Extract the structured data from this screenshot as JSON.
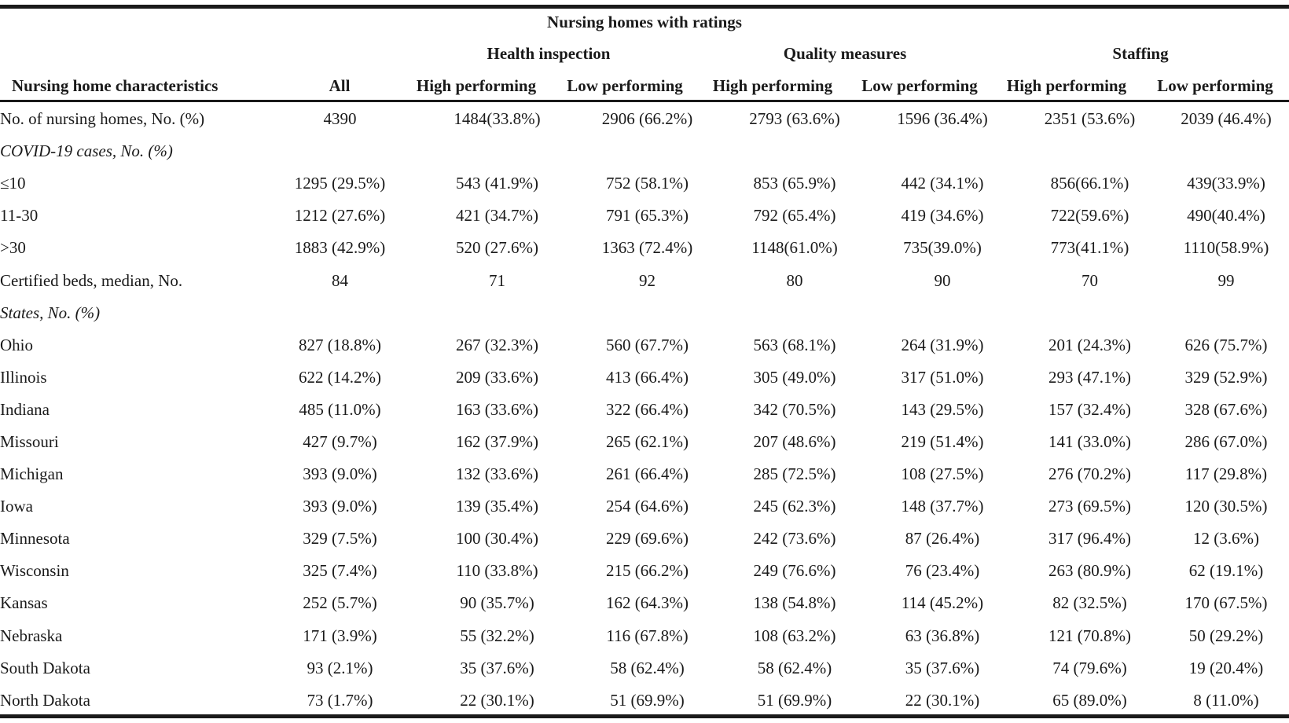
{
  "table": {
    "super_header": "Nursing homes with ratings",
    "group_headers": {
      "health": "Health inspection",
      "quality": "Quality measures",
      "staffing": "Staffing"
    },
    "column_headers": [
      "Nursing home characteristics",
      "All",
      "High performing",
      "Low performing",
      "High performing",
      "Low performing",
      "High performing",
      "Low performing"
    ],
    "rows": [
      {
        "label": "No. of nursing homes, No. (%)",
        "italic": false,
        "values": [
          "4390",
          "1484(33.8%)",
          "2906 (66.2%)",
          "2793 (63.6%)",
          "1596 (36.4%)",
          "2351 (53.6%)",
          "2039 (46.4%)"
        ]
      },
      {
        "label": "COVID-19 cases, No. (%)",
        "italic": true,
        "values": [
          "",
          "",
          "",
          "",
          "",
          "",
          ""
        ]
      },
      {
        "label": "≤10",
        "italic": false,
        "values": [
          "1295 (29.5%)",
          "543 (41.9%)",
          "752 (58.1%)",
          "853 (65.9%)",
          "442 (34.1%)",
          "856(66.1%)",
          "439(33.9%)"
        ]
      },
      {
        "label": "11-30",
        "italic": false,
        "values": [
          "1212 (27.6%)",
          "421 (34.7%)",
          "791 (65.3%)",
          "792 (65.4%)",
          "419 (34.6%)",
          "722(59.6%)",
          "490(40.4%)"
        ]
      },
      {
        "label": ">30",
        "italic": false,
        "values": [
          "1883 (42.9%)",
          "520 (27.6%)",
          "1363 (72.4%)",
          "1148(61.0%)",
          "735(39.0%)",
          "773(41.1%)",
          "1110(58.9%)"
        ]
      },
      {
        "label": "Certified beds, median, No.",
        "italic": false,
        "values": [
          "84",
          "71",
          "92",
          "80",
          "90",
          "70",
          "99"
        ]
      },
      {
        "label": "States, No. (%)",
        "italic": true,
        "values": [
          "",
          "",
          "",
          "",
          "",
          "",
          ""
        ]
      },
      {
        "label": "Ohio",
        "italic": false,
        "values": [
          "827 (18.8%)",
          "267 (32.3%)",
          "560 (67.7%)",
          "563 (68.1%)",
          "264 (31.9%)",
          "201 (24.3%)",
          "626 (75.7%)"
        ]
      },
      {
        "label": "Illinois",
        "italic": false,
        "values": [
          "622 (14.2%)",
          "209 (33.6%)",
          "413 (66.4%)",
          "305 (49.0%)",
          "317 (51.0%)",
          "293 (47.1%)",
          "329 (52.9%)"
        ]
      },
      {
        "label": "Indiana",
        "italic": false,
        "values": [
          "485 (11.0%)",
          "163 (33.6%)",
          "322 (66.4%)",
          "342 (70.5%)",
          "143 (29.5%)",
          "157 (32.4%)",
          "328 (67.6%)"
        ]
      },
      {
        "label": "Missouri",
        "italic": false,
        "values": [
          "427 (9.7%)",
          "162 (37.9%)",
          "265 (62.1%)",
          "207 (48.6%)",
          "219 (51.4%)",
          "141 (33.0%)",
          "286 (67.0%)"
        ]
      },
      {
        "label": "Michigan",
        "italic": false,
        "values": [
          "393 (9.0%)",
          "132 (33.6%)",
          "261 (66.4%)",
          "285 (72.5%)",
          "108 (27.5%)",
          "276 (70.2%)",
          "117 (29.8%)"
        ]
      },
      {
        "label": "Iowa",
        "italic": false,
        "values": [
          "393 (9.0%)",
          "139 (35.4%)",
          "254 (64.6%)",
          "245 (62.3%)",
          "148 (37.7%)",
          "273 (69.5%)",
          "120 (30.5%)"
        ]
      },
      {
        "label": "Minnesota",
        "italic": false,
        "values": [
          "329 (7.5%)",
          "100 (30.4%)",
          "229 (69.6%)",
          "242 (73.6%)",
          "87 (26.4%)",
          "317 (96.4%)",
          "12 (3.6%)"
        ]
      },
      {
        "label": "Wisconsin",
        "italic": false,
        "values": [
          "325 (7.4%)",
          "110 (33.8%)",
          "215 (66.2%)",
          "249 (76.6%)",
          "76 (23.4%)",
          "263 (80.9%)",
          "62 (19.1%)"
        ]
      },
      {
        "label": "Kansas",
        "italic": false,
        "values": [
          "252 (5.7%)",
          "90 (35.7%)",
          "162 (64.3%)",
          "138 (54.8%)",
          "114 (45.2%)",
          "82 (32.5%)",
          "170 (67.5%)"
        ]
      },
      {
        "label": "Nebraska",
        "italic": false,
        "values": [
          "171 (3.9%)",
          "55 (32.2%)",
          "116 (67.8%)",
          "108 (63.2%)",
          "63 (36.8%)",
          "121 (70.8%)",
          "50 (29.2%)"
        ]
      },
      {
        "label": "South Dakota",
        "italic": false,
        "values": [
          "93 (2.1%)",
          "35 (37.6%)",
          "58 (62.4%)",
          "58 (62.4%)",
          "35 (37.6%)",
          "74 (79.6%)",
          "19 (20.4%)"
        ]
      },
      {
        "label": "North Dakota",
        "italic": false,
        "values": [
          "73 (1.7%)",
          "22 (30.1%)",
          "51 (69.9%)",
          "51 (69.9%)",
          "22 (30.1%)",
          "65 (89.0%)",
          "8 (11.0%)"
        ]
      }
    ]
  }
}
